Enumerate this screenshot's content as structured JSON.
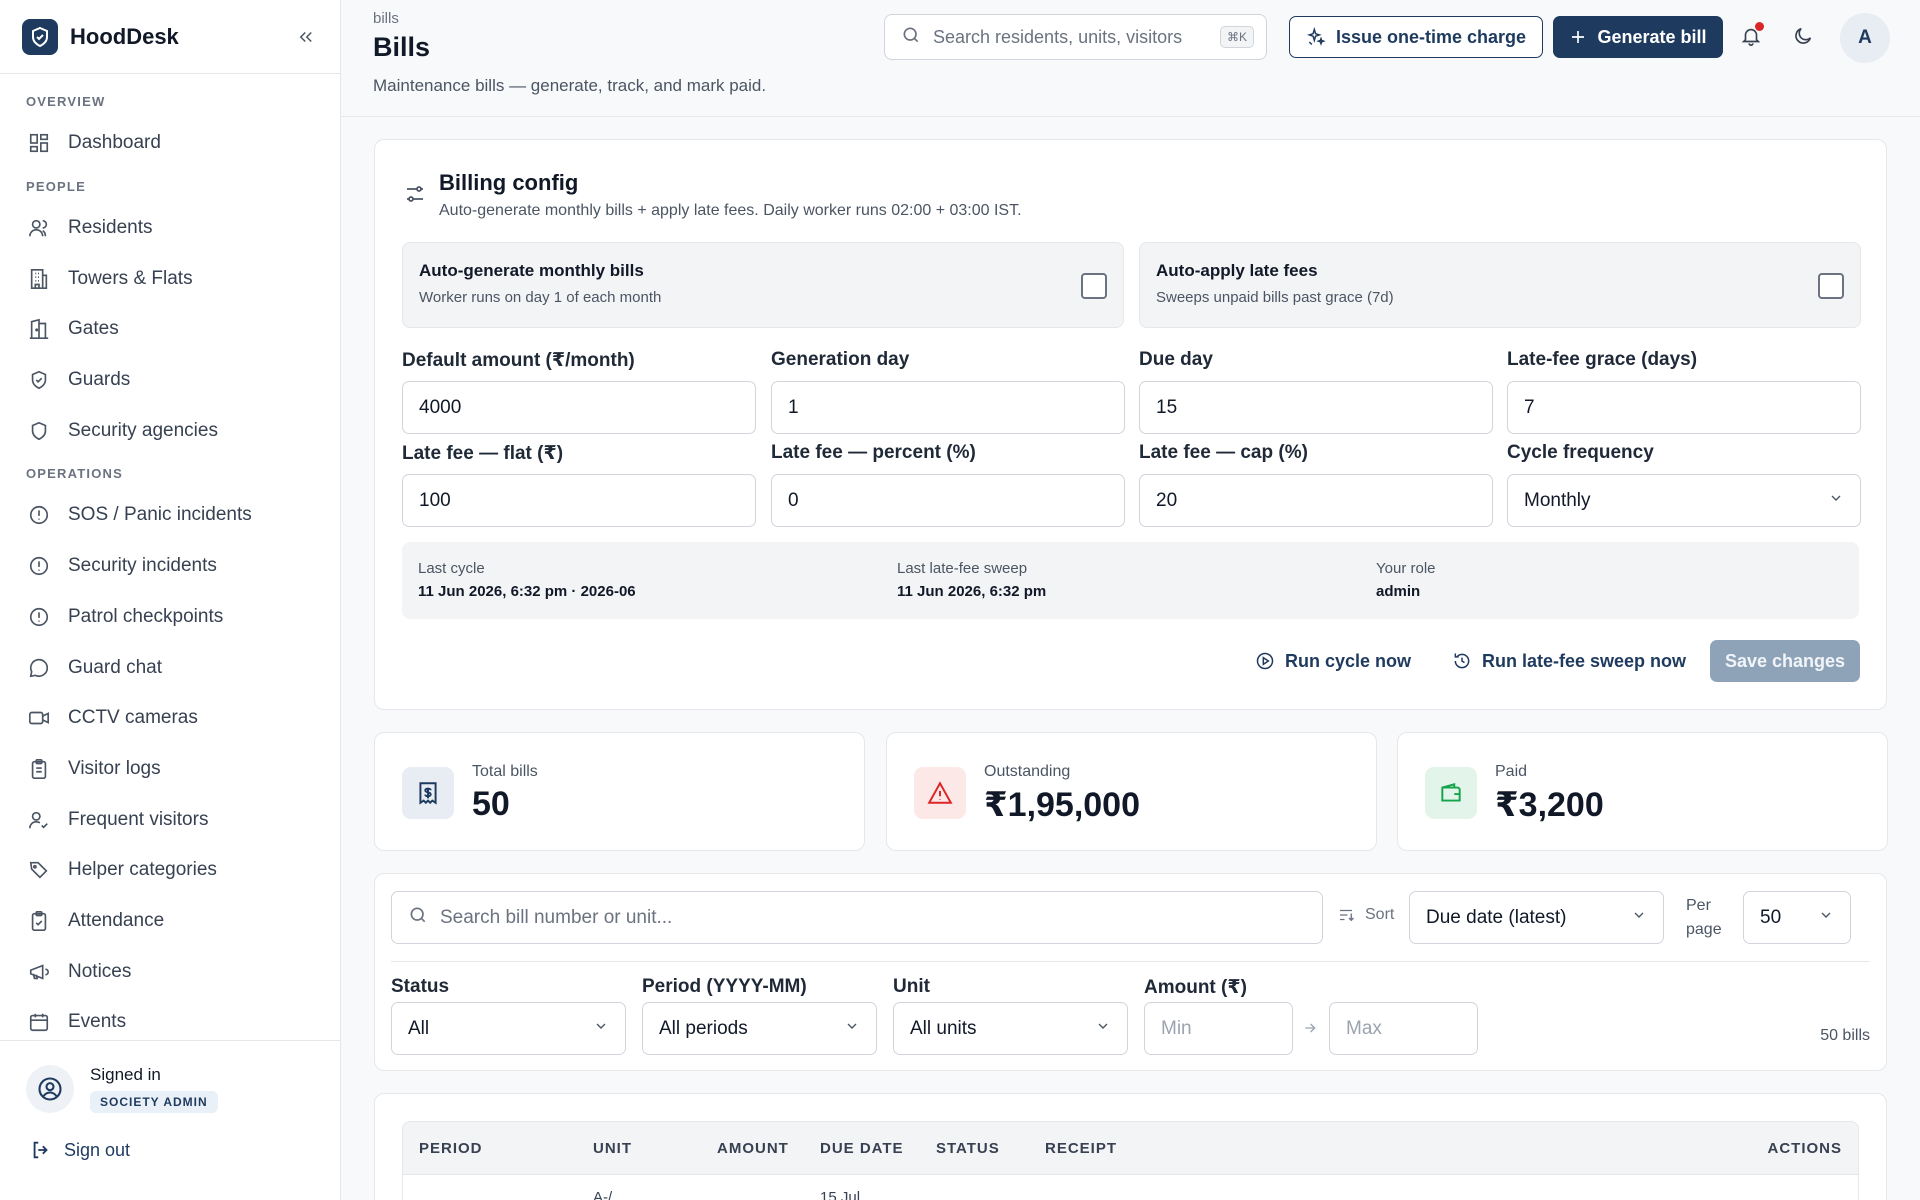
{
  "brand": {
    "name": "HoodDesk"
  },
  "sidebar": {
    "groups": [
      {
        "label": "OVERVIEW",
        "items": [
          {
            "label": "Dashboard",
            "icon": "dashboard-icon"
          }
        ]
      },
      {
        "label": "PEOPLE",
        "items": [
          {
            "label": "Residents",
            "icon": "users-icon"
          },
          {
            "label": "Towers & Flats",
            "icon": "building-icon"
          },
          {
            "label": "Gates",
            "icon": "gate-icon"
          },
          {
            "label": "Guards",
            "icon": "shield-check-icon"
          },
          {
            "label": "Security agencies",
            "icon": "shield-icon"
          }
        ]
      },
      {
        "label": "OPERATIONS",
        "items": [
          {
            "label": "SOS / Panic incidents",
            "icon": "alert-circle-icon"
          },
          {
            "label": "Security incidents",
            "icon": "alert-circle-icon"
          },
          {
            "label": "Patrol checkpoints",
            "icon": "alert-circle-icon"
          },
          {
            "label": "Guard chat",
            "icon": "chat-icon"
          },
          {
            "label": "CCTV cameras",
            "icon": "video-icon"
          },
          {
            "label": "Visitor logs",
            "icon": "clipboard-icon"
          },
          {
            "label": "Frequent visitors",
            "icon": "user-check-icon"
          },
          {
            "label": "Helper categories",
            "icon": "tags-icon"
          },
          {
            "label": "Attendance",
            "icon": "clipboard-check-icon"
          },
          {
            "label": "Notices",
            "icon": "megaphone-icon"
          },
          {
            "label": "Events",
            "icon": "calendar-icon"
          }
        ]
      }
    ],
    "footer": {
      "signed_in": "Signed in",
      "role": "SOCIETY ADMIN",
      "sign_out": "Sign out"
    }
  },
  "header": {
    "breadcrumb": "bills",
    "title": "Bills",
    "subtitle": "Maintenance bills — generate, track, and mark paid.",
    "search_placeholder": "Search residents, units, visitors",
    "search_shortcut": "⌘K",
    "issue_charge_label": "Issue one-time charge",
    "generate_bill_label": "Generate bill",
    "avatar_initial": "A"
  },
  "billing_config": {
    "title": "Billing config",
    "description": "Auto-generate monthly bills + apply late fees. Daily worker runs 02:00 + 03:00 IST.",
    "auto_generate": {
      "title": "Auto-generate monthly bills",
      "description": "Worker runs on day 1 of each month",
      "checked": false
    },
    "auto_late_fees": {
      "title": "Auto-apply late fees",
      "description": "Sweeps unpaid bills past grace (7d)",
      "checked": false
    },
    "fields": {
      "default_amount": {
        "label": "Default amount (₹/month)",
        "value": "4000"
      },
      "generation_day": {
        "label": "Generation day",
        "value": "1"
      },
      "due_day": {
        "label": "Due day",
        "value": "15"
      },
      "grace_days": {
        "label": "Late-fee grace (days)",
        "value": "7"
      },
      "late_fee_flat": {
        "label": "Late fee — flat (₹)",
        "value": "100"
      },
      "late_fee_percent": {
        "label": "Late fee — percent (%)",
        "value": "0"
      },
      "late_fee_cap": {
        "label": "Late fee — cap (%)",
        "value": "20"
      },
      "cycle_frequency": {
        "label": "Cycle frequency",
        "value": "Monthly"
      }
    },
    "meta": {
      "last_cycle_label": "Last cycle",
      "last_cycle_value": "11 Jun 2026, 6:32 pm · 2026-06",
      "last_sweep_label": "Last late-fee sweep",
      "last_sweep_value": "11 Jun 2026, 6:32 pm",
      "role_label": "Your role",
      "role_value": "admin"
    },
    "run_cycle_label": "Run cycle now",
    "run_sweep_label": "Run late-fee sweep now",
    "save_label": "Save changes"
  },
  "stats": [
    {
      "label": "Total bills",
      "value": "50",
      "icon": "receipt-icon",
      "color": "#1e3a5f",
      "bg": "#e8edf3"
    },
    {
      "label": "Outstanding",
      "value": "₹1,95,000",
      "icon": "warning-icon",
      "color": "#dc2626",
      "bg": "#fde8e8"
    },
    {
      "label": "Paid",
      "value": "₹3,200",
      "icon": "wallet-icon",
      "color": "#16a34a",
      "bg": "#e3f4ea"
    }
  ],
  "filters": {
    "search_placeholder": "Search bill number or unit...",
    "sort_label": "Sort",
    "sort_value": "Due date (latest)",
    "per_page_label": "Per page",
    "per_page_value": "50",
    "status_label": "Status",
    "status_value": "All",
    "period_label": "Period (YYYY-MM)",
    "period_value": "All periods",
    "unit_label": "Unit",
    "unit_value": "All units",
    "amount_label": "Amount (₹)",
    "min_placeholder": "Min",
    "max_placeholder": "Max",
    "count": "50 bills"
  },
  "table": {
    "columns": [
      "PERIOD",
      "UNIT",
      "AMOUNT",
      "DUE DATE",
      "STATUS",
      "RECEIPT",
      "ACTIONS"
    ],
    "first_row": {
      "unit": "A-/",
      "due": "15 Jul"
    }
  },
  "colors": {
    "accent": "#1e3a5f",
    "danger": "#dc2626",
    "success": "#16a34a"
  }
}
